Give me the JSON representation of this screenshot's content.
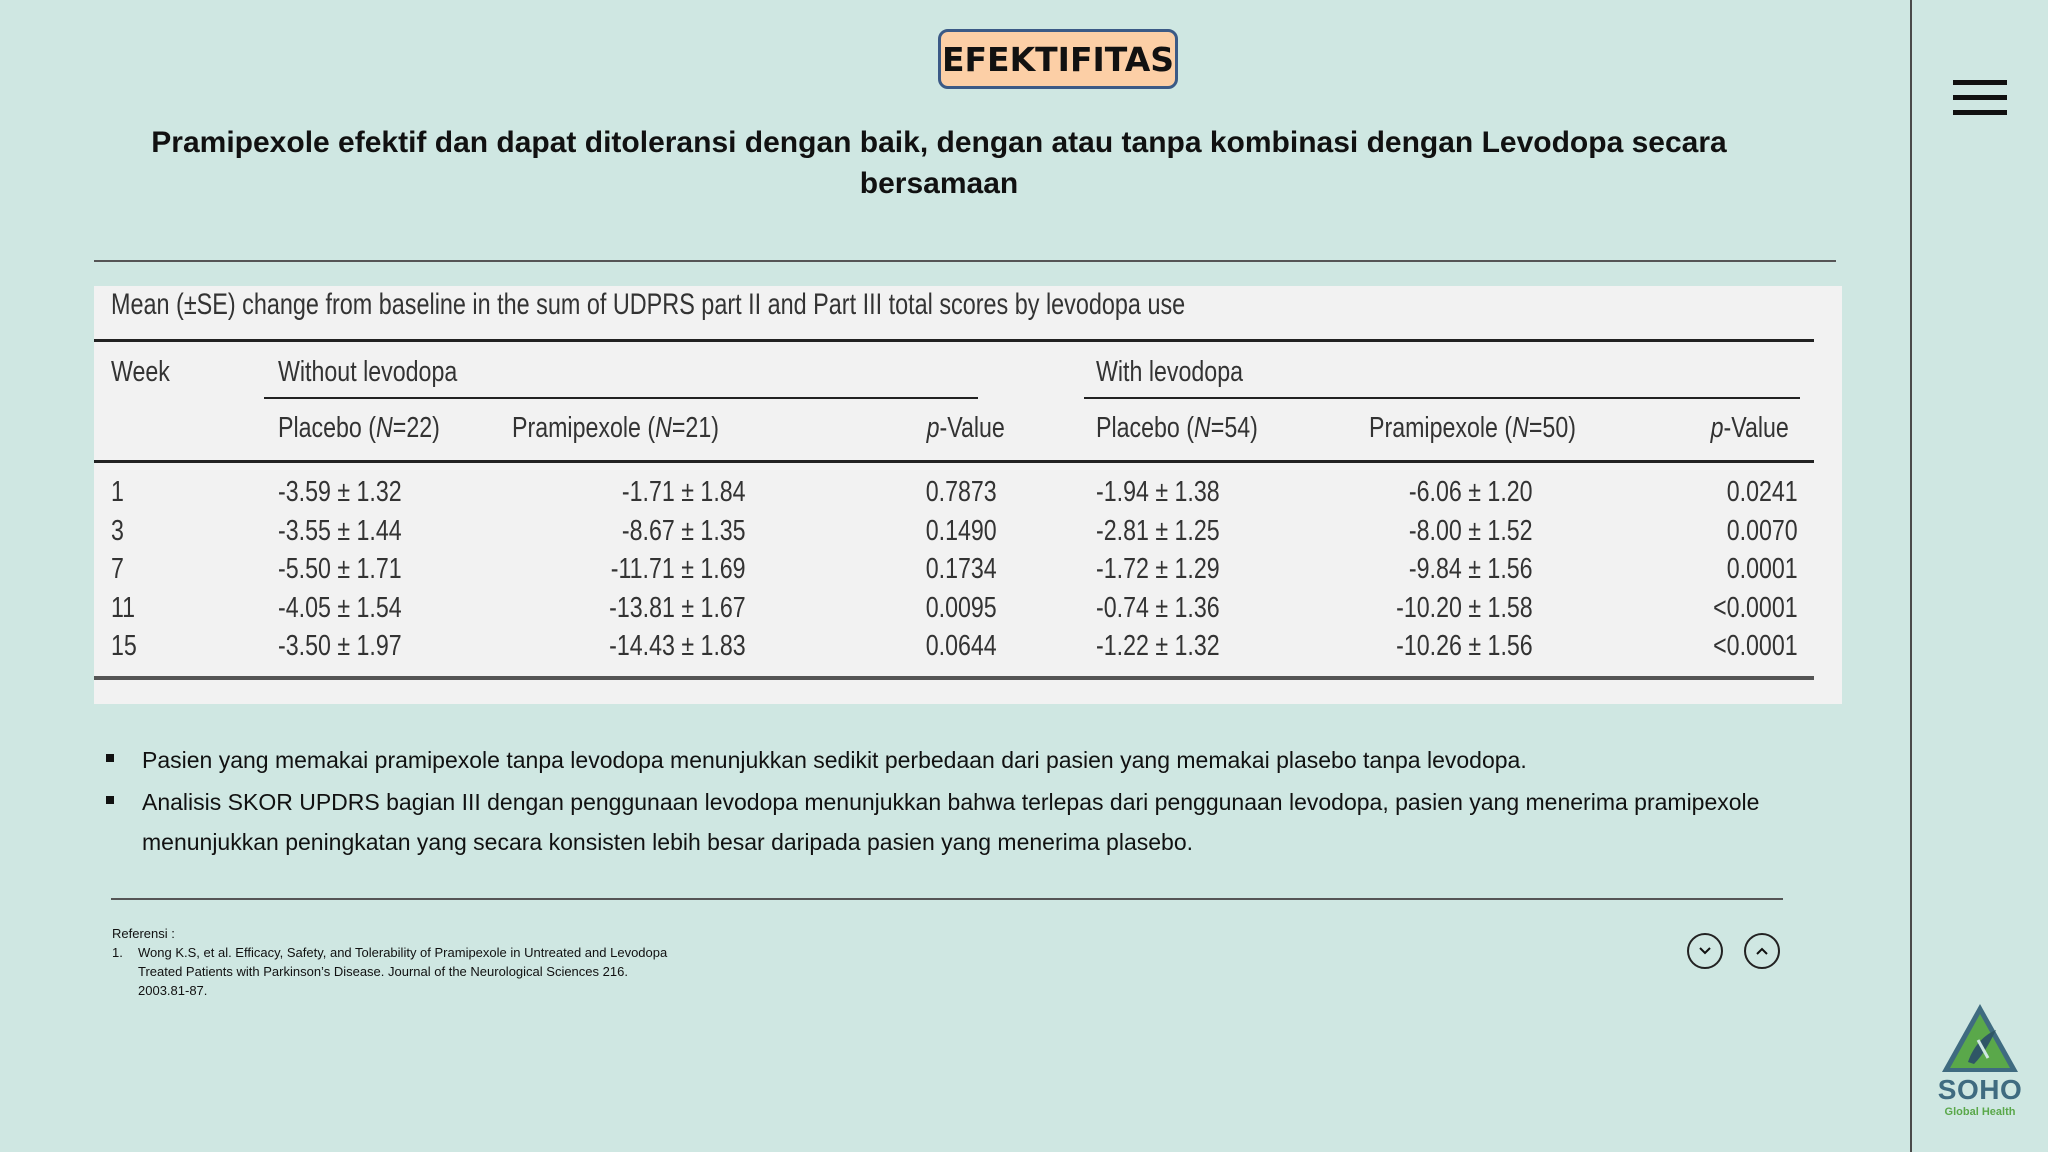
{
  "header": {
    "badge": "EFEKTIFITAS",
    "subtitle_line1": "Pramipexole efektif dan dapat ditoleransi dengan baik, dengan atau tanpa kombinasi dengan Levodopa secara",
    "subtitle_line2": "bersamaan"
  },
  "table": {
    "caption": "Mean (±SE) change from baseline in the sum of UDPRS part II and Part III total scores by levodopa use",
    "week_header": "Week",
    "group_without": "Without levodopa",
    "group_with": "With levodopa",
    "col_placebo_without": "Placebo (N=22)",
    "col_prami_without": "Pramipexole (N=21)",
    "col_p_without": "p-Value",
    "col_placebo_with": "Placebo (N=54)",
    "col_prami_with": "Pramipexole (N=50)",
    "col_p_with": "p-Value",
    "rows": [
      {
        "week": "1",
        "placebo_wo": "-3.59 ± 1.32",
        "prami_wo": "-1.71 ± 1.84",
        "p_wo": "0.7873",
        "placebo_w": "-1.94 ± 1.38",
        "prami_w": "-6.06 ± 1.20",
        "p_w": "0.0241"
      },
      {
        "week": "3",
        "placebo_wo": "-3.55 ± 1.44",
        "prami_wo": "-8.67 ± 1.35",
        "p_wo": "0.1490",
        "placebo_w": "-2.81 ± 1.25",
        "prami_w": "-8.00 ± 1.52",
        "p_w": "0.0070"
      },
      {
        "week": "7",
        "placebo_wo": "-5.50 ± 1.71",
        "prami_wo": "-11.71 ± 1.69",
        "p_wo": "0.1734",
        "placebo_w": "-1.72 ± 1.29",
        "prami_w": "-9.84 ± 1.56",
        "p_w": "0.0001"
      },
      {
        "week": "11",
        "placebo_wo": "-4.05 ± 1.54",
        "prami_wo": "-13.81 ± 1.67",
        "p_wo": "0.0095",
        "placebo_w": "-0.74 ± 1.36",
        "prami_w": "-10.20 ± 1.58",
        "p_w": "<0.0001"
      },
      {
        "week": "15",
        "placebo_wo": "-3.50 ± 1.97",
        "prami_wo": "-14.43 ± 1.83",
        "p_wo": "0.0644",
        "placebo_w": "-1.22 ± 1.32",
        "prami_w": "-10.26 ± 1.56",
        "p_w": "<0.0001"
      }
    ]
  },
  "bullets": [
    "Pasien yang memakai pramipexole tanpa levodopa menunjukkan sedikit perbedaan dari pasien yang memakai plasebo tanpa levodopa.",
    "Analisis SKOR UPDRS bagian III dengan penggunaan levodopa menunjukkan bahwa terlepas dari penggunaan levodopa, pasien yang menerima pramipexole menunjukkan peningkatan yang secara konsisten lebih besar daripada pasien yang menerima plasebo."
  ],
  "references": {
    "heading": "Referensi :",
    "items": [
      {
        "num": "1.",
        "text": "Wong K.S, et al. Efficacy, Safety, and Tolerability of Pramipexole in Untreated and Levodopa Treated Patients with Parkinson’s Disease. Journal of the Neurological Sciences 216. 2003.81-87."
      }
    ]
  },
  "logo": {
    "name": "SOHO",
    "sub": "Global Health"
  },
  "icons": {
    "menu": "hamburger-menu-icon",
    "down": "chevron-down-icon",
    "up": "chevron-up-icon"
  },
  "colors": {
    "background": "#cfe7e2",
    "badge_fill": "#fccfa6",
    "badge_border": "#3b5a86",
    "logo_blue": "#3f6b80",
    "logo_green": "#5aa84a"
  }
}
